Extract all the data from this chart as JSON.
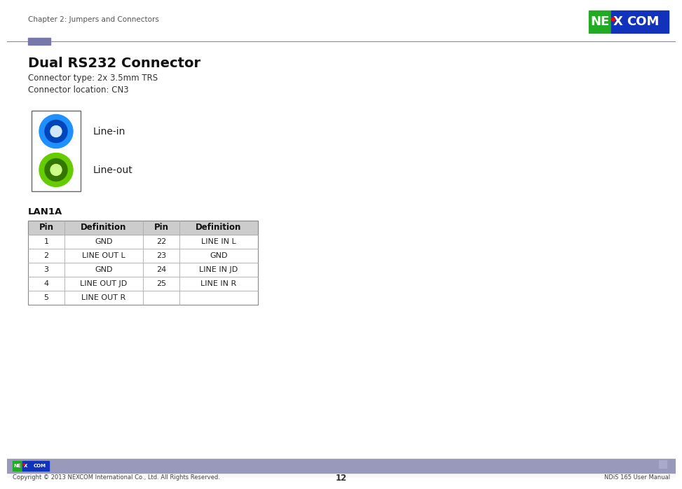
{
  "bg_color": "#ffffff",
  "header_line_color": "#8888aa",
  "header_accent_color": "#7777aa",
  "chapter_text": "Chapter 2: Jumpers and Connectors",
  "title": "Dual RS232 Connector",
  "subtitle_lines": [
    "Connector type: 2x 3.5mm TRS",
    "Connector location: CN3"
  ],
  "connector_label": "LAN1A",
  "line_in_label": "Line-in",
  "line_out_label": "Line-out",
  "blue_outer": "#1e90ff",
  "blue_inner": "#0044bb",
  "blue_center": "#d0e8ff",
  "green_outer": "#66cc00",
  "green_inner": "#337700",
  "green_center": "#ccff88",
  "footer_bg": "#9999bb",
  "footer_center": "12",
  "footer_left": "Copyright © 2013 NEXCOM International Co., Ltd. All Rights Reserved.",
  "footer_right": "NDiS 165 User Manual",
  "nexcom_green": "#22aa22",
  "nexcom_blue": "#1133bb",
  "table_header_bg": "#cccccc",
  "table_left_data": [
    [
      "1",
      "GND"
    ],
    [
      "2",
      "LINE OUT L"
    ],
    [
      "3",
      "GND"
    ],
    [
      "4",
      "LINE OUT JD"
    ],
    [
      "5",
      "LINE OUT R"
    ]
  ],
  "table_right_data": [
    [
      "22",
      "LINE IN L"
    ],
    [
      "23",
      "GND"
    ],
    [
      "24",
      "LINE IN JD"
    ],
    [
      "25",
      "LINE IN R"
    ],
    [
      "",
      ""
    ]
  ]
}
